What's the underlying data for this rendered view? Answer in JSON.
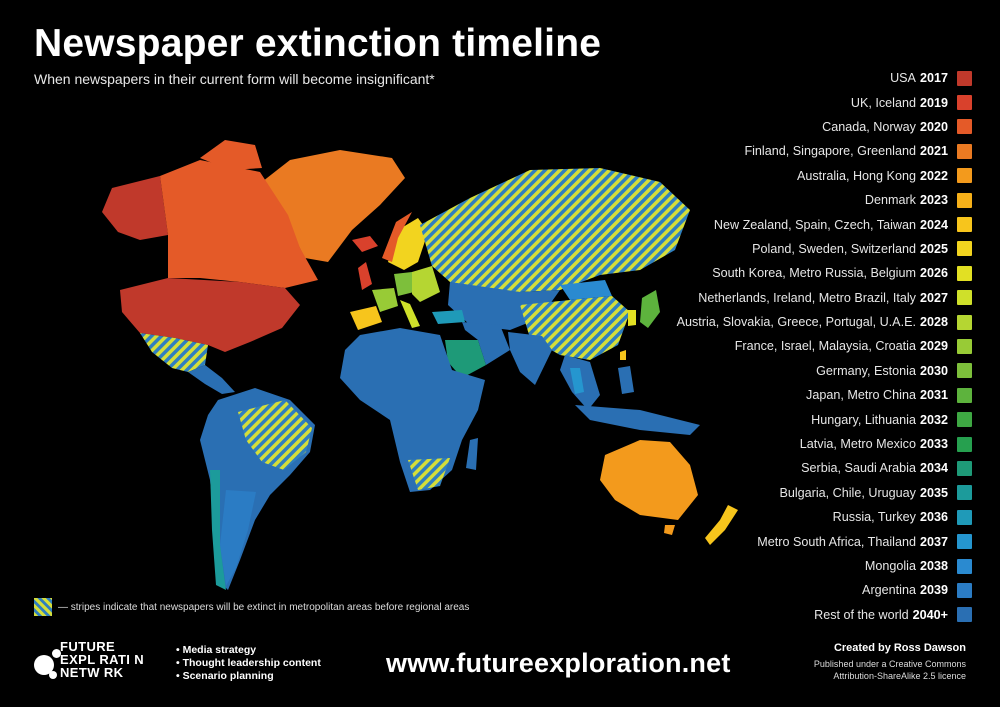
{
  "title": "Newspaper extinction timeline",
  "subtitle": "When newspapers in their current form will become insignificant*",
  "legend": [
    {
      "label": "USA",
      "year": "2017",
      "color": "#c0392b"
    },
    {
      "label": "UK, Iceland",
      "year": "2019",
      "color": "#d9412c"
    },
    {
      "label": "Canada, Norway",
      "year": "2020",
      "color": "#e45a28"
    },
    {
      "label": "Finland, Singapore, Greenland",
      "year": "2021",
      "color": "#ea7a22"
    },
    {
      "label": "Australia, Hong Kong",
      "year": "2022",
      "color": "#f39a1c"
    },
    {
      "label": "Denmark",
      "year": "2023",
      "color": "#f6b019"
    },
    {
      "label": "New Zealand, Spain, Czech, Taiwan",
      "year": "2024",
      "color": "#f7c51c"
    },
    {
      "label": "Poland, Sweden, Switzerland",
      "year": "2025",
      "color": "#f2d41f"
    },
    {
      "label": "South Korea, Metro Russia, Belgium",
      "year": "2026",
      "color": "#e2e023"
    },
    {
      "label": "Netherlands, Ireland, Metro Brazil, Italy",
      "year": "2027",
      "color": "#cfe02a"
    },
    {
      "label": "Austria, Slovakia, Greece, Portugal, U.A.E.",
      "year": "2028",
      "color": "#b5d632"
    },
    {
      "label": "France, Israel, Malaysia, Croatia",
      "year": "2029",
      "color": "#98cb36"
    },
    {
      "label": "Germany, Estonia",
      "year": "2030",
      "color": "#7dbf3b"
    },
    {
      "label": "Japan, Metro China",
      "year": "2031",
      "color": "#5db33d"
    },
    {
      "label": "Hungary, Lithuania",
      "year": "2032",
      "color": "#3ea843"
    },
    {
      "label": "Latvia, Metro Mexico",
      "year": "2033",
      "color": "#26a04f"
    },
    {
      "label": "Serbia, Saudi Arabia",
      "year": "2034",
      "color": "#1e9a78"
    },
    {
      "label": "Bulgaria, Chile, Uruguay",
      "year": "2035",
      "color": "#1c9b9b"
    },
    {
      "label": "Russia, Turkey",
      "year": "2036",
      "color": "#1f9ab8"
    },
    {
      "label": "Metro South Africa, Thailand",
      "year": "2037",
      "color": "#2596cf"
    },
    {
      "label": "Mongolia",
      "year": "2038",
      "color": "#2a8ad0"
    },
    {
      "label": "Argentina",
      "year": "2039",
      "color": "#2b7cc4"
    },
    {
      "label": "Rest of the world",
      "year": "2040+",
      "color": "#2a6fb3"
    }
  ],
  "stripe_note": "— stripes indicate that newspapers will be extinct in metropolitan areas before regional areas",
  "logo": {
    "text": "FUTURE\nEXPL RATI N\nNETW RK"
  },
  "bullets": [
    "• Media strategy",
    "• Thought leadership content",
    "• Scenario planning"
  ],
  "url": "www.futureexploration.net",
  "credit": {
    "by": "Created by Ross Dawson",
    "license_line1": "Published under a Creative Commons",
    "license_line2": "Attribution-ShareAlike 2.5 licence"
  },
  "colors": {
    "background": "#000000",
    "stripe_a": "#d4de3a",
    "stripe_b": "#2f7fbf",
    "rest_of_world": "#2a6fb3"
  }
}
